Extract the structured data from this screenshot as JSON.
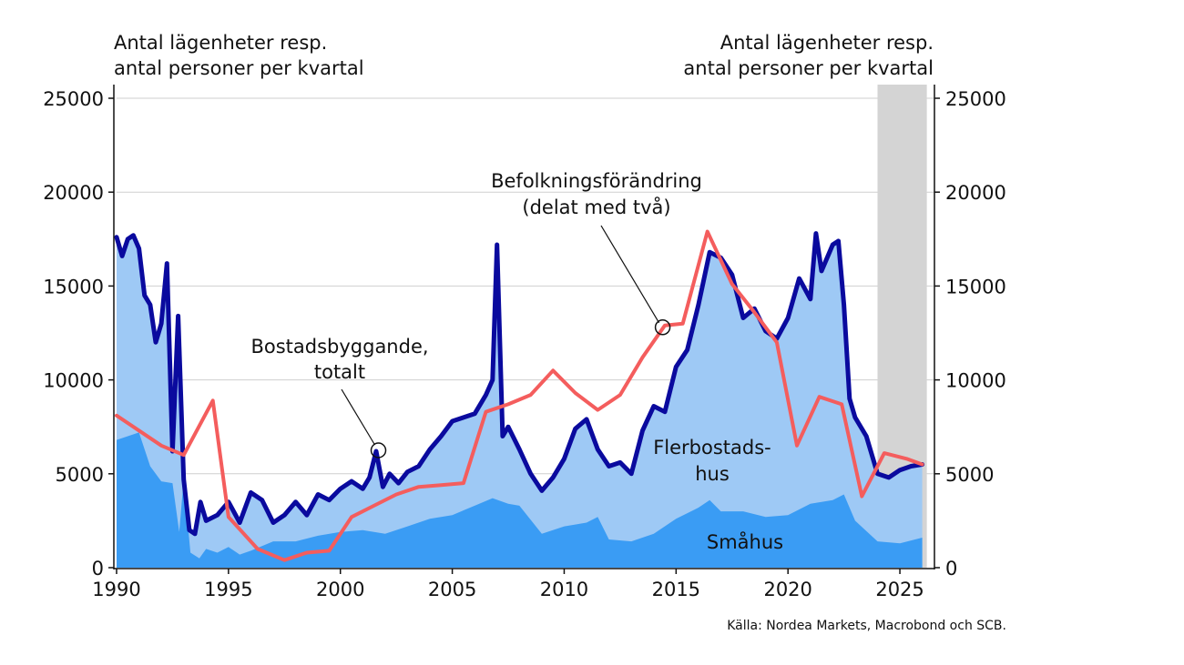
{
  "chart_data": {
    "type": "area",
    "ylabel_left": "Antal lägenheter resp.\nantal personer per kvartal",
    "ylabel_right": "Antal lägenheter resp.\nantal personer per kvartal",
    "xlim": [
      1990,
      2026.3
    ],
    "ylim": [
      0,
      25000
    ],
    "x_ticks": [
      1990,
      1995,
      2000,
      2005,
      2010,
      2015,
      2020,
      2025
    ],
    "y_ticks": [
      0,
      5000,
      10000,
      15000,
      20000,
      25000
    ],
    "grid": "horizontal",
    "shaded_region": {
      "from": 2024.0,
      "to": 2026.0,
      "color": "#d4d4d4"
    },
    "colors": {
      "flerbostadshus": "#9ec9f5",
      "smahus": "#3a9cf4",
      "total": "#0a0a9e",
      "befolkning": "#f45d5d"
    },
    "series": [
      {
        "name": "Småhus",
        "kind": "area",
        "x": [
          1990,
          1991,
          1991.5,
          1992,
          1992.5,
          1992.8,
          1993,
          1993.3,
          1993.7,
          1994,
          1994.5,
          1995,
          1995.5,
          1996,
          1997,
          1998,
          1999,
          2000,
          2001,
          2002,
          2003,
          2004,
          2005,
          2006,
          2006.8,
          2007.5,
          2008,
          2009,
          2010,
          2011,
          2011.5,
          2012,
          2013,
          2014,
          2015,
          2016,
          2016.5,
          2017,
          2018,
          2019,
          2020,
          2021,
          2022,
          2022.5,
          2023,
          2024,
          2025,
          2026
        ],
        "y": [
          6800,
          7200,
          5400,
          4600,
          4500,
          1900,
          4700,
          800,
          500,
          1000,
          800,
          1100,
          700,
          900,
          1400,
          1400,
          1700,
          1900,
          2000,
          1800,
          2200,
          2600,
          2800,
          3300,
          3700,
          3400,
          3300,
          1800,
          2200,
          2400,
          2700,
          1500,
          1400,
          1800,
          2600,
          3200,
          3600,
          3000,
          3000,
          2700,
          2800,
          3400,
          3600,
          3900,
          2500,
          1400,
          1300,
          1600
        ]
      },
      {
        "name": "Flerbostadshus",
        "kind": "area_total",
        "x": [
          1990,
          1990.25,
          1990.5,
          1990.75,
          1991,
          1991.25,
          1991.5,
          1991.75,
          1992,
          1992.25,
          1992.5,
          1992.75,
          1993,
          1993.25,
          1993.5,
          1993.75,
          1994,
          1994.5,
          1995,
          1995.5,
          1996,
          1996.5,
          1997,
          1997.5,
          1998,
          1998.5,
          1999,
          1999.5,
          2000,
          2000.5,
          2001,
          2001.3,
          2001.6,
          2001.9,
          2002.2,
          2002.6,
          2003,
          2003.5,
          2004,
          2004.5,
          2005,
          2005.5,
          2006,
          2006.5,
          2006.8,
          2007,
          2007.25,
          2007.5,
          2008,
          2008.5,
          2009,
          2009.5,
          2010,
          2010.5,
          2011,
          2011.5,
          2012,
          2012.5,
          2013,
          2013.5,
          2014,
          2014.5,
          2015,
          2015.5,
          2016,
          2016.5,
          2017,
          2017.5,
          2018,
          2018.5,
          2019,
          2019.5,
          2020,
          2020.5,
          2021,
          2021.25,
          2021.5,
          2022,
          2022.25,
          2022.5,
          2022.75,
          2023,
          2023.5,
          2024,
          2024.5,
          2025,
          2025.5,
          2026
        ],
        "y": [
          17600,
          16600,
          17500,
          17700,
          17000,
          14500,
          14000,
          12000,
          13000,
          16200,
          6200,
          13400,
          4700,
          2000,
          1800,
          3500,
          2500,
          2800,
          3500,
          2400,
          4000,
          3600,
          2400,
          2800,
          3500,
          2800,
          3900,
          3600,
          4200,
          4600,
          4200,
          4800,
          6200,
          4300,
          5000,
          4500,
          5100,
          5400,
          6300,
          7000,
          7800,
          8000,
          8200,
          9200,
          10000,
          17200,
          7000,
          7500,
          6300,
          5000,
          4100,
          4800,
          5800,
          7400,
          7900,
          6300,
          5400,
          5600,
          5000,
          7300,
          8600,
          8300,
          10700,
          11600,
          14000,
          16800,
          16500,
          15600,
          13300,
          13800,
          12600,
          12200,
          13300,
          15400,
          14300,
          17800,
          15800,
          17200,
          17400,
          14000,
          9000,
          8000,
          7000,
          5000,
          4800,
          5200,
          5400,
          5500
        ]
      },
      {
        "name": "Bostadsbyggande, totalt",
        "kind": "line",
        "x": [
          1990,
          1990.25,
          1990.5,
          1990.75,
          1991,
          1991.25,
          1991.5,
          1991.75,
          1992,
          1992.25,
          1992.5,
          1992.75,
          1993,
          1993.25,
          1993.5,
          1993.75,
          1994,
          1994.5,
          1995,
          1995.5,
          1996,
          1996.5,
          1997,
          1997.5,
          1998,
          1998.5,
          1999,
          1999.5,
          2000,
          2000.5,
          2001,
          2001.3,
          2001.6,
          2001.9,
          2002.2,
          2002.6,
          2003,
          2003.5,
          2004,
          2004.5,
          2005,
          2005.5,
          2006,
          2006.5,
          2006.8,
          2007,
          2007.25,
          2007.5,
          2008,
          2008.5,
          2009,
          2009.5,
          2010,
          2010.5,
          2011,
          2011.5,
          2012,
          2012.5,
          2013,
          2013.5,
          2014,
          2014.5,
          2015,
          2015.5,
          2016,
          2016.5,
          2017,
          2017.5,
          2018,
          2018.5,
          2019,
          2019.5,
          2020,
          2020.5,
          2021,
          2021.25,
          2021.5,
          2022,
          2022.25,
          2022.5,
          2022.75,
          2023,
          2023.5,
          2024,
          2024.5,
          2025,
          2025.5,
          2026
        ],
        "y": [
          17600,
          16600,
          17500,
          17700,
          17000,
          14500,
          14000,
          12000,
          13000,
          16200,
          6200,
          13400,
          4700,
          2000,
          1800,
          3500,
          2500,
          2800,
          3500,
          2400,
          4000,
          3600,
          2400,
          2800,
          3500,
          2800,
          3900,
          3600,
          4200,
          4600,
          4200,
          4800,
          6200,
          4300,
          5000,
          4500,
          5100,
          5400,
          6300,
          7000,
          7800,
          8000,
          8200,
          9200,
          10000,
          17200,
          7000,
          7500,
          6300,
          5000,
          4100,
          4800,
          5800,
          7400,
          7900,
          6300,
          5400,
          5600,
          5000,
          7300,
          8600,
          8300,
          10700,
          11600,
          14000,
          16800,
          16500,
          15600,
          13300,
          13800,
          12600,
          12200,
          13300,
          15400,
          14300,
          17800,
          15800,
          17200,
          17400,
          14000,
          9000,
          8000,
          7000,
          5000,
          4800,
          5200,
          5400,
          5500
        ]
      },
      {
        "name": "Befolkningsförändring (delat med två)",
        "kind": "line",
        "x": [
          1990,
          1991,
          1992,
          1993,
          1994.3,
          1995,
          1996.3,
          1997.5,
          1998.5,
          1999.5,
          2000.5,
          2001.5,
          2002.5,
          2003.5,
          2004.5,
          2005.5,
          2006.5,
          2007.5,
          2008.5,
          2009.5,
          2010.5,
          2011.5,
          2012.5,
          2013.5,
          2014.5,
          2015.3,
          2016.4,
          2017.5,
          2018.5,
          2019.5,
          2020.4,
          2021.4,
          2022.4,
          2023.3,
          2024.3,
          2025.3,
          2026
        ],
        "y": [
          8100,
          7300,
          6500,
          6000,
          8900,
          2700,
          1000,
          400,
          800,
          900,
          2700,
          3300,
          3900,
          4300,
          4400,
          4500,
          8300,
          8700,
          9200,
          10500,
          9300,
          8400,
          9200,
          11200,
          12900,
          13000,
          17900,
          15100,
          13600,
          12000,
          6500,
          9100,
          8700,
          3800,
          6100,
          5800,
          5500
        ]
      }
    ],
    "annotations": [
      {
        "text": "Befolkningsförändring\n(delat med två)",
        "target_x": 2014.4,
        "target_y": 12800
      },
      {
        "text": "Bostadsbyggande,\ntotalt",
        "target_x": 2001.7,
        "target_y": 6250
      },
      {
        "text": "Flerbostads-\nhus"
      },
      {
        "text": "Småhus"
      }
    ]
  },
  "source": "Källa: Nordea Markets, Macrobond och SCB."
}
